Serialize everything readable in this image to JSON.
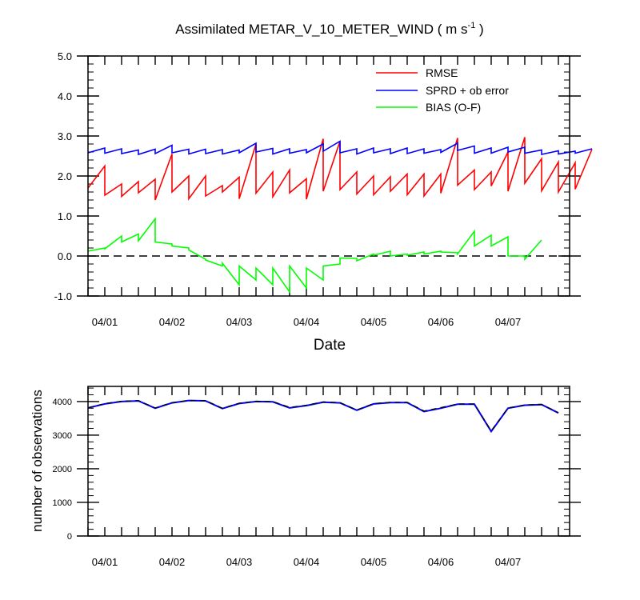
{
  "chart_data": [
    {
      "type": "line",
      "title": "Assimilated METAR_V_10_METER_WIND ( m s",
      "title_superscript": "-1",
      "title_close": " )",
      "xlabel": "Date",
      "ylabel": "",
      "ylim": [
        -1.0,
        5.0
      ],
      "yticks": [
        "-1.0",
        "0.0",
        "1.0",
        "2.0",
        "3.0",
        "4.0",
        "5.0"
      ],
      "x_tick_labels": [
        "04/01",
        "04/02",
        "04/03",
        "04/04",
        "04/05",
        "04/06",
        "04/07"
      ],
      "zero_line": "dashed",
      "legend_position": "top-right",
      "series": [
        {
          "name": "RMSE",
          "color": "#ff0000",
          "points": [
            [
              0.0,
              1.7
            ],
            [
              0.25,
              2.25
            ],
            [
              0.25,
              1.52
            ],
            [
              0.5,
              1.8
            ],
            [
              0.5,
              1.49
            ],
            [
              0.75,
              1.86
            ],
            [
              0.75,
              1.58
            ],
            [
              1.0,
              1.92
            ],
            [
              1.0,
              1.4
            ],
            [
              1.25,
              2.55
            ],
            [
              1.25,
              1.6
            ],
            [
              1.5,
              2.0
            ],
            [
              1.5,
              1.43
            ],
            [
              1.75,
              2.0
            ],
            [
              1.75,
              1.5
            ],
            [
              2.0,
              1.76
            ],
            [
              2.0,
              1.6
            ],
            [
              2.25,
              1.97
            ],
            [
              2.25,
              1.43
            ],
            [
              2.5,
              2.8
            ],
            [
              2.5,
              1.57
            ],
            [
              2.75,
              2.1
            ],
            [
              2.75,
              1.48
            ],
            [
              3.0,
              2.15
            ],
            [
              3.0,
              1.58
            ],
            [
              3.25,
              1.93
            ],
            [
              3.25,
              1.42
            ],
            [
              3.5,
              2.93
            ],
            [
              3.5,
              1.62
            ],
            [
              3.75,
              2.87
            ],
            [
              3.75,
              1.66
            ],
            [
              4.0,
              2.1
            ],
            [
              4.0,
              1.55
            ],
            [
              4.25,
              2.0
            ],
            [
              4.25,
              1.53
            ],
            [
              4.5,
              1.98
            ],
            [
              4.5,
              1.62
            ],
            [
              4.75,
              2.05
            ],
            [
              4.75,
              1.53
            ],
            [
              5.0,
              2.05
            ],
            [
              5.0,
              1.5
            ],
            [
              5.25,
              2.05
            ],
            [
              5.25,
              1.57
            ],
            [
              5.5,
              2.95
            ],
            [
              5.5,
              1.77
            ],
            [
              5.75,
              2.15
            ],
            [
              5.75,
              1.66
            ],
            [
              6.0,
              2.1
            ],
            [
              6.0,
              1.75
            ],
            [
              6.25,
              2.6
            ],
            [
              6.25,
              1.62
            ],
            [
              6.5,
              2.97
            ],
            [
              6.5,
              1.82
            ],
            [
              6.75,
              2.43
            ],
            [
              6.75,
              1.63
            ],
            [
              7.0,
              2.35
            ],
            [
              7.0,
              1.6
            ],
            [
              7.25,
              2.33
            ],
            [
              7.25,
              1.67
            ],
            [
              7.5,
              2.67
            ]
          ]
        },
        {
          "name": "SPRD + ob error",
          "color": "#0000ff",
          "points": [
            [
              0.0,
              2.58
            ],
            [
              0.25,
              2.7
            ],
            [
              0.25,
              2.57
            ],
            [
              0.5,
              2.68
            ],
            [
              0.5,
              2.56
            ],
            [
              0.75,
              2.65
            ],
            [
              0.75,
              2.54
            ],
            [
              1.0,
              2.67
            ],
            [
              1.0,
              2.56
            ],
            [
              1.25,
              2.77
            ],
            [
              1.25,
              2.58
            ],
            [
              1.5,
              2.67
            ],
            [
              1.5,
              2.55
            ],
            [
              1.75,
              2.67
            ],
            [
              1.75,
              2.56
            ],
            [
              2.0,
              2.66
            ],
            [
              2.0,
              2.55
            ],
            [
              2.25,
              2.65
            ],
            [
              2.25,
              2.58
            ],
            [
              2.5,
              2.82
            ],
            [
              2.5,
              2.6
            ],
            [
              2.75,
              2.69
            ],
            [
              2.75,
              2.55
            ],
            [
              3.0,
              2.68
            ],
            [
              3.0,
              2.57
            ],
            [
              3.25,
              2.66
            ],
            [
              3.25,
              2.58
            ],
            [
              3.5,
              2.8
            ],
            [
              3.5,
              2.62
            ],
            [
              3.75,
              2.87
            ],
            [
              3.75,
              2.58
            ],
            [
              4.0,
              2.68
            ],
            [
              4.0,
              2.55
            ],
            [
              4.25,
              2.7
            ],
            [
              4.25,
              2.58
            ],
            [
              4.5,
              2.68
            ],
            [
              4.5,
              2.56
            ],
            [
              4.75,
              2.7
            ],
            [
              4.75,
              2.56
            ],
            [
              5.0,
              2.68
            ],
            [
              5.0,
              2.57
            ],
            [
              5.25,
              2.66
            ],
            [
              5.25,
              2.59
            ],
            [
              5.5,
              2.82
            ],
            [
              5.5,
              2.64
            ],
            [
              5.75,
              2.75
            ],
            [
              5.75,
              2.57
            ],
            [
              6.0,
              2.7
            ],
            [
              6.0,
              2.57
            ],
            [
              6.25,
              2.72
            ],
            [
              6.25,
              2.6
            ],
            [
              6.5,
              2.72
            ],
            [
              6.5,
              2.57
            ],
            [
              6.75,
              2.65
            ],
            [
              6.75,
              2.54
            ],
            [
              7.0,
              2.63
            ],
            [
              7.0,
              2.55
            ],
            [
              7.25,
              2.62
            ],
            [
              7.25,
              2.57
            ],
            [
              7.5,
              2.68
            ]
          ]
        },
        {
          "name": "BIAS (O-F)",
          "color": "#00ff00",
          "points": [
            [
              0.0,
              0.12
            ],
            [
              0.25,
              0.2
            ],
            [
              0.25,
              0.18
            ],
            [
              0.5,
              0.5
            ],
            [
              0.5,
              0.35
            ],
            [
              0.75,
              0.55
            ],
            [
              0.75,
              0.38
            ],
            [
              1.0,
              0.93
            ],
            [
              1.0,
              0.35
            ],
            [
              1.25,
              0.3
            ],
            [
              1.25,
              0.25
            ],
            [
              1.5,
              0.2
            ],
            [
              1.5,
              0.15
            ],
            [
              1.75,
              -0.08
            ],
            [
              1.75,
              -0.1
            ],
            [
              2.0,
              -0.25
            ],
            [
              2.0,
              -0.18
            ],
            [
              2.25,
              -0.72
            ],
            [
              2.25,
              -0.25
            ],
            [
              2.5,
              -0.6
            ],
            [
              2.5,
              -0.3
            ],
            [
              2.75,
              -0.72
            ],
            [
              2.75,
              -0.3
            ],
            [
              3.0,
              -0.9
            ],
            [
              3.0,
              -0.25
            ],
            [
              3.25,
              -0.8
            ],
            [
              3.25,
              -0.3
            ],
            [
              3.5,
              -0.6
            ],
            [
              3.5,
              -0.25
            ],
            [
              3.75,
              -0.2
            ],
            [
              3.75,
              -0.05
            ],
            [
              4.0,
              -0.06
            ],
            [
              4.0,
              -0.12
            ],
            [
              4.25,
              0.05
            ],
            [
              4.25,
              0.02
            ],
            [
              4.5,
              0.12
            ],
            [
              4.5,
              0.0
            ],
            [
              4.75,
              0.05
            ],
            [
              4.75,
              0.02
            ],
            [
              5.0,
              0.1
            ],
            [
              5.0,
              0.05
            ],
            [
              5.25,
              0.12
            ],
            [
              5.25,
              0.1
            ],
            [
              5.5,
              0.08
            ],
            [
              5.5,
              0.05
            ],
            [
              5.75,
              0.62
            ],
            [
              5.75,
              0.25
            ],
            [
              6.0,
              0.52
            ],
            [
              6.0,
              0.25
            ],
            [
              6.25,
              0.48
            ],
            [
              6.25,
              0.0
            ],
            [
              6.5,
              0.0
            ],
            [
              6.5,
              -0.08
            ],
            [
              6.75,
              0.4
            ]
          ]
        }
      ]
    },
    {
      "type": "line",
      "title": "",
      "xlabel": "",
      "ylabel": "number of observations",
      "ylim": [
        0,
        4450
      ],
      "yticks": [
        "0",
        "1000",
        "2000",
        "3000",
        "4000"
      ],
      "x_tick_labels": [
        "04/01",
        "04/02",
        "04/03",
        "04/04",
        "04/05",
        "04/06",
        "04/07"
      ],
      "series": [
        {
          "color": "#0000ff",
          "style": "solid",
          "points": [
            [
              0.0,
              3810
            ],
            [
              0.25,
              3930
            ],
            [
              0.5,
              4000
            ],
            [
              0.75,
              4020
            ],
            [
              1.0,
              3800
            ],
            [
              1.25,
              3960
            ],
            [
              1.5,
              4030
            ],
            [
              1.75,
              4020
            ],
            [
              2.0,
              3790
            ],
            [
              2.25,
              3940
            ],
            [
              2.5,
              4000
            ],
            [
              2.75,
              3990
            ],
            [
              3.0,
              3810
            ],
            [
              3.25,
              3880
            ],
            [
              3.5,
              3980
            ],
            [
              3.75,
              3960
            ],
            [
              4.0,
              3740
            ],
            [
              4.25,
              3930
            ],
            [
              4.5,
              3970
            ],
            [
              4.75,
              3970
            ],
            [
              5.0,
              3700
            ],
            [
              5.25,
              3800
            ],
            [
              5.5,
              3920
            ],
            [
              5.75,
              3920
            ],
            [
              6.0,
              3110
            ],
            [
              6.25,
              3800
            ],
            [
              6.5,
              3890
            ],
            [
              6.75,
              3910
            ],
            [
              7.0,
              3660
            ]
          ]
        },
        {
          "color": "#000000",
          "style": "dashed",
          "points": [
            [
              0.0,
              3810
            ],
            [
              0.25,
              3940
            ],
            [
              0.5,
              4010
            ],
            [
              0.75,
              4030
            ],
            [
              1.0,
              3810
            ],
            [
              1.25,
              3970
            ],
            [
              1.5,
              4030
            ],
            [
              1.75,
              4030
            ],
            [
              2.0,
              3800
            ],
            [
              2.25,
              3950
            ],
            [
              2.5,
              4010
            ],
            [
              2.75,
              4000
            ],
            [
              3.0,
              3830
            ],
            [
              3.25,
              3890
            ],
            [
              3.5,
              3990
            ],
            [
              3.75,
              3970
            ],
            [
              4.0,
              3750
            ],
            [
              4.25,
              3940
            ],
            [
              4.5,
              3980
            ],
            [
              4.75,
              3980
            ],
            [
              5.0,
              3720
            ],
            [
              5.25,
              3820
            ],
            [
              5.5,
              3930
            ],
            [
              5.75,
              3930
            ],
            [
              6.0,
              3130
            ],
            [
              6.25,
              3810
            ],
            [
              6.5,
              3900
            ],
            [
              6.75,
              3920
            ],
            [
              7.0,
              3670
            ]
          ]
        }
      ]
    }
  ]
}
